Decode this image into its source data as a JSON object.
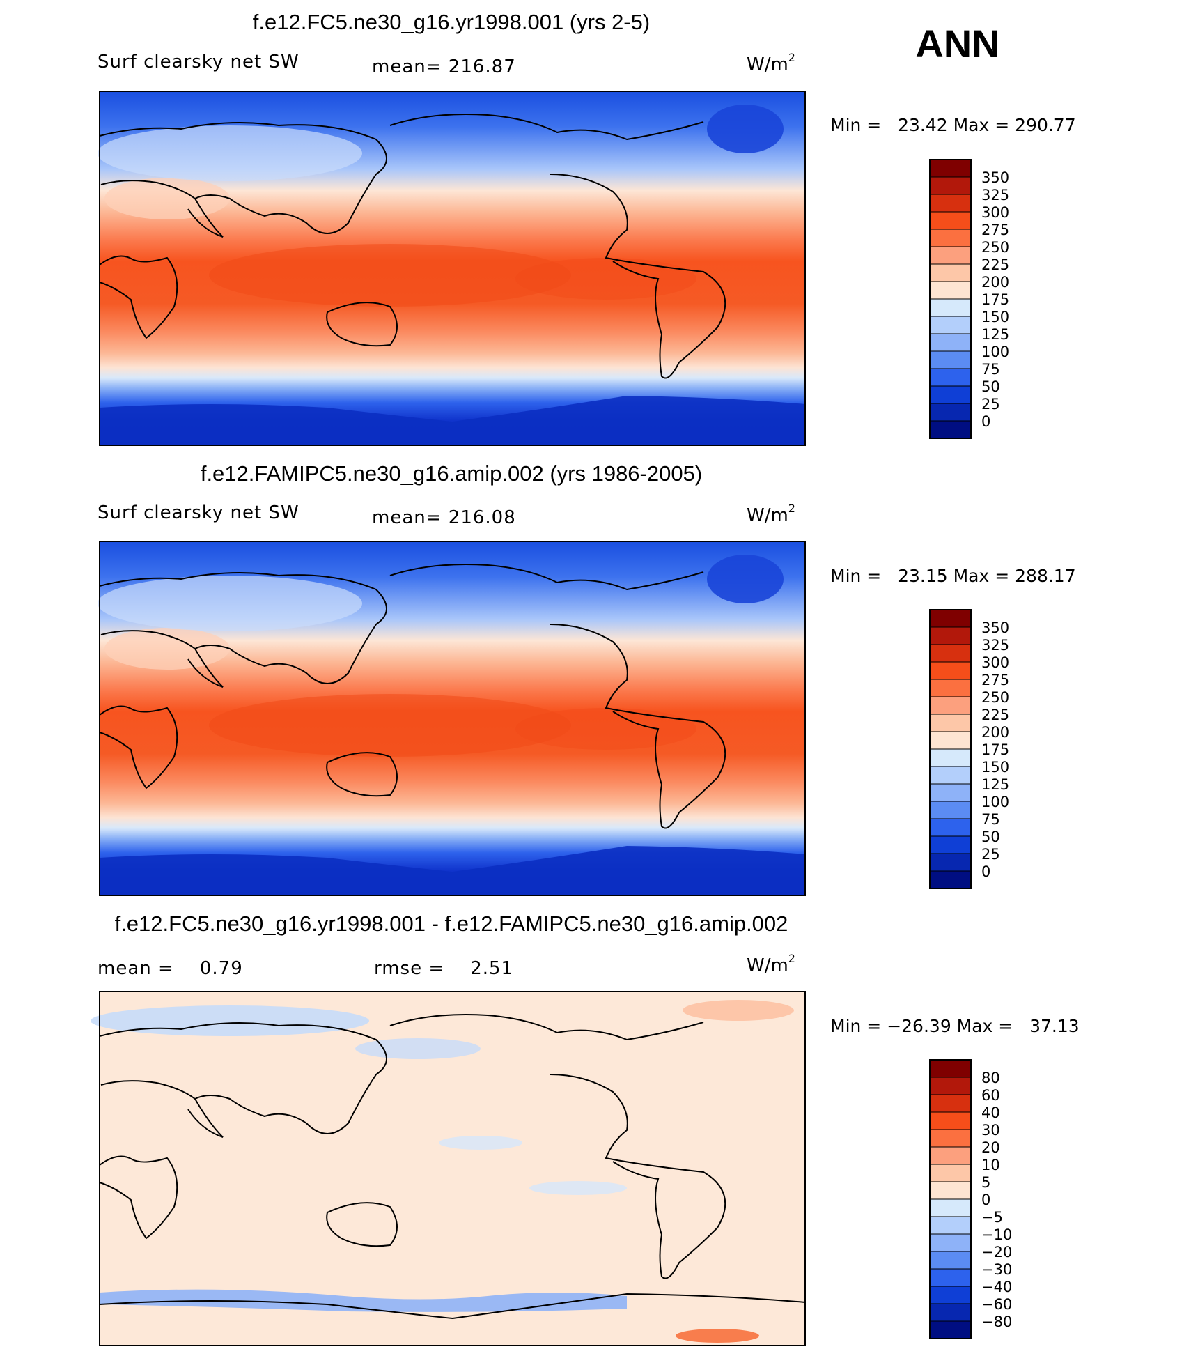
{
  "season": "ANN",
  "panels": [
    {
      "title": "f.e12.FC5.ne30_g16.yr1998.001 (yrs 2-5)",
      "left": "Surf clearsky net SW",
      "middle": "mean= 216.87",
      "units_base": "W/m",
      "units_exp": "2",
      "minmax": "Min =   23.42 Max = 290.77",
      "levels": [
        "350",
        "325",
        "300",
        "275",
        "250",
        "225",
        "200",
        "175",
        "150",
        "125",
        "100",
        "75",
        "50",
        "25",
        "0"
      ],
      "field": "abs"
    },
    {
      "title": "f.e12.FAMIPC5.ne30_g16.amip.002 (yrs 1986-2005)",
      "left": "Surf clearsky net SW",
      "middle": "mean= 216.08",
      "units_base": "W/m",
      "units_exp": "2",
      "minmax": "Min =   23.15 Max = 288.17",
      "levels": [
        "350",
        "325",
        "300",
        "275",
        "250",
        "225",
        "200",
        "175",
        "150",
        "125",
        "100",
        "75",
        "50",
        "25",
        "0"
      ],
      "field": "abs"
    },
    {
      "title": "f.e12.FC5.ne30_g16.yr1998.001 - f.e12.FAMIPC5.ne30_g16.amip.002",
      "left": "mean =    0.79",
      "middle": "rmse =    2.51",
      "units_base": "W/m",
      "units_exp": "2",
      "minmax": "Min = −26.39 Max =   37.13",
      "levels": [
        "80",
        "60",
        "40",
        "30",
        "20",
        "10",
        "5",
        "0",
        "−5",
        "−10",
        "−20",
        "−30",
        "−40",
        "−60",
        "−80"
      ],
      "field": "diff"
    }
  ],
  "colorbar_colors": [
    "#7f0000",
    "#b2180b",
    "#d7300f",
    "#f64e1a",
    "#fb7040",
    "#fca07e",
    "#fdc7a8",
    "#fee4d2",
    "#d6e9fb",
    "#b3cffb",
    "#8eb2f8",
    "#5b8cf3",
    "#2d62ed",
    "#0f3fd6",
    "#0727b0",
    "#000e82"
  ]
}
